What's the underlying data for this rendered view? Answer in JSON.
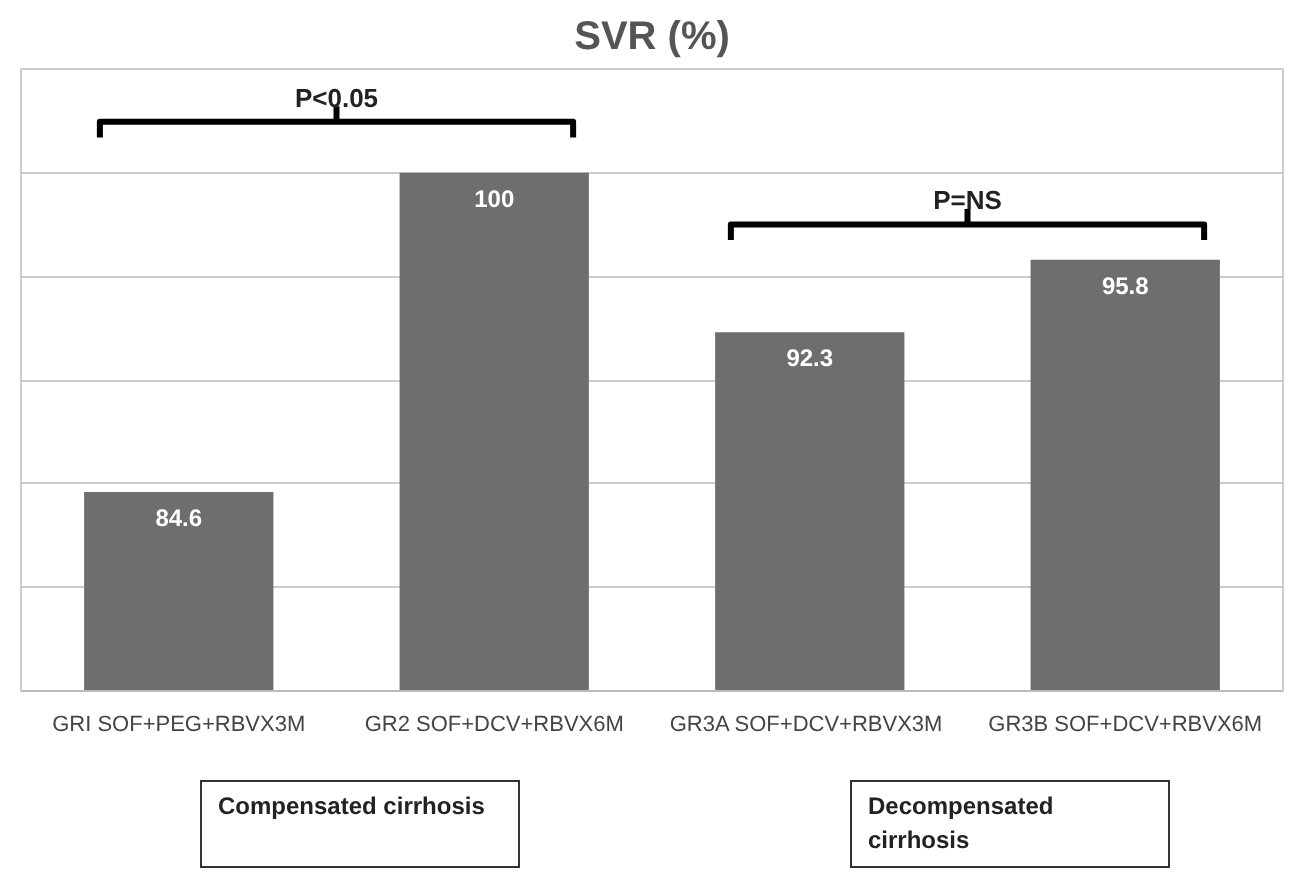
{
  "chart_data": {
    "type": "bar",
    "title": "SVR (%)",
    "categories": [
      "GRI SOF+PEG+RBVX3M",
      "GR2 SOF+DCV+RBVX6M",
      "GR3A  SOF+DCV+RBVX3M",
      "GR3B SOF+DCV+RBVX6M"
    ],
    "values": [
      84.6,
      100,
      92.3,
      95.8
    ],
    "color": "#6e6e6e",
    "data_labels": true,
    "ylim": [
      75,
      105
    ],
    "yticks": [
      {
        "value": 75,
        "label": null
      },
      {
        "value": 80,
        "label": null
      },
      {
        "value": 85,
        "label": null
      },
      {
        "value": 90,
        "label": null
      },
      {
        "value": 95,
        "label": null
      },
      {
        "value": 100,
        "label": null
      }
    ],
    "grid": "y",
    "tick_labels": "x",
    "annotations": [
      "P<0.05",
      "P=NS",
      "Compensated cirrhosis",
      "Decompensated cirrhosis"
    ]
  }
}
